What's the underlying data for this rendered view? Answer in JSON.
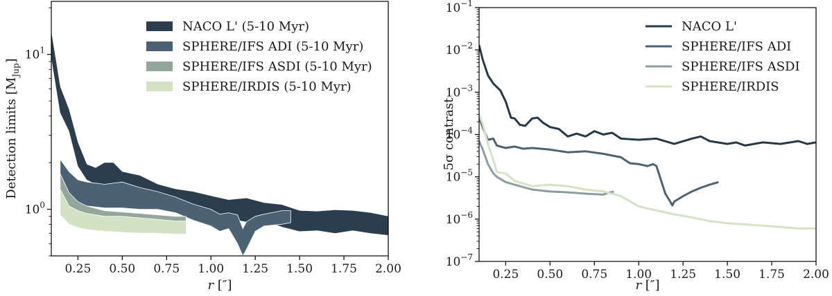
{
  "chart_data": [
    {
      "type": "area",
      "xlabel": "r [″]",
      "ylabel": "Detection limits [M",
      "ylabel_sub": "Jup",
      "ylabel_close": "]",
      "xlim": [
        0.1,
        2.0
      ],
      "ylim": [
        0.5,
        22
      ],
      "yscale": "log",
      "xticks": [
        0.25,
        0.5,
        0.75,
        1.0,
        1.25,
        1.5,
        1.75,
        2.0
      ],
      "xtick_labels": [
        "0.25",
        "0.50",
        "0.75",
        "1.00",
        "1.25",
        "1.50",
        "1.75",
        "2.00"
      ],
      "yticks": [
        {
          "value": 10,
          "base": "10",
          "exp": "1"
        },
        {
          "value": 1,
          "base": "10",
          "exp": "0"
        }
      ],
      "legend": [
        "NACO L' (5-10 Myr)",
        "SPHERE/IFS ADI (5-10 Myr)",
        "SPHERE/IFS ASDI (5-10 Myr)",
        "SPHERE/IRDIS (5-10 Myr)"
      ],
      "series": [
        {
          "name": "NACO L' (5-10 Myr)",
          "color": "#2b3e4d",
          "x": [
            0.1,
            0.15,
            0.2,
            0.25,
            0.3,
            0.35,
            0.4,
            0.45,
            0.5,
            0.6,
            0.7,
            0.8,
            0.9,
            1.0,
            1.1,
            1.2,
            1.3,
            1.4,
            1.5,
            1.6,
            1.7,
            1.8,
            1.9,
            2.0
          ],
          "upper": [
            14.0,
            6.2,
            4.4,
            2.7,
            1.95,
            1.85,
            2.0,
            2.0,
            1.75,
            1.65,
            1.45,
            1.35,
            1.3,
            1.22,
            1.15,
            1.18,
            1.1,
            1.07,
            0.98,
            0.97,
            0.99,
            0.98,
            0.95,
            0.9
          ],
          "lower": [
            9.5,
            4.2,
            3.2,
            1.9,
            1.55,
            1.45,
            1.45,
            1.4,
            1.35,
            1.25,
            1.15,
            1.1,
            1.0,
            0.95,
            0.87,
            0.83,
            0.85,
            0.77,
            0.72,
            0.73,
            0.7,
            0.73,
            0.7,
            0.68
          ]
        },
        {
          "name": "SPHERE/IFS ADI (5-10 Myr)",
          "color": "#4a6274",
          "x": [
            0.15,
            0.2,
            0.25,
            0.3,
            0.4,
            0.5,
            0.6,
            0.7,
            0.8,
            0.9,
            1.0,
            1.05,
            1.1,
            1.15,
            1.18,
            1.2,
            1.25,
            1.3,
            1.4,
            1.45
          ],
          "upper": [
            2.1,
            1.75,
            1.55,
            1.5,
            1.45,
            1.5,
            1.38,
            1.3,
            1.2,
            1.08,
            1.0,
            0.93,
            0.95,
            0.92,
            0.75,
            0.83,
            0.9,
            0.93,
            0.98,
            0.98
          ],
          "lower": [
            1.3,
            1.15,
            1.05,
            1.05,
            1.02,
            1.02,
            1.0,
            1.0,
            0.95,
            0.85,
            0.78,
            0.72,
            0.75,
            0.6,
            0.5,
            0.55,
            0.72,
            0.78,
            0.8,
            0.82
          ]
        },
        {
          "name": "SPHERE/IFS ASDI (5-10 Myr)",
          "color": "#93a69c",
          "x": [
            0.15,
            0.2,
            0.25,
            0.3,
            0.4,
            0.5,
            0.6,
            0.7,
            0.8,
            0.86
          ],
          "upper": [
            1.7,
            1.28,
            1.12,
            1.05,
            0.98,
            0.96,
            0.94,
            0.92,
            0.9,
            0.9
          ],
          "lower": [
            0.95,
            0.8,
            0.76,
            0.74,
            0.72,
            0.71,
            0.7,
            0.7,
            0.69,
            0.69
          ]
        },
        {
          "name": "SPHERE/IRDIS (5-10 Myr)",
          "color": "#d4e2c4",
          "x": [
            0.15,
            0.2,
            0.25,
            0.3,
            0.4,
            0.5,
            0.6,
            0.7,
            0.8,
            0.86
          ],
          "upper": [
            1.35,
            1.05,
            0.98,
            0.94,
            0.9,
            0.9,
            0.88,
            0.86,
            0.84,
            0.84
          ],
          "lower": [
            0.92,
            0.8,
            0.76,
            0.74,
            0.72,
            0.71,
            0.7,
            0.7,
            0.69,
            0.69
          ]
        }
      ]
    },
    {
      "type": "line",
      "xlabel": "r [″]",
      "ylabel": "5σ contrast",
      "xlim": [
        0.1,
        2.0
      ],
      "ylim": [
        1e-07,
        0.1
      ],
      "yscale": "log",
      "xticks": [
        0.25,
        0.5,
        0.75,
        1.0,
        1.25,
        1.5,
        1.75,
        2.0
      ],
      "xtick_labels": [
        "0.25",
        "0.50",
        "0.75",
        "1.00",
        "1.25",
        "1.50",
        "1.75",
        "2.00"
      ],
      "yticks": [
        {
          "value": 0.1,
          "base": "10",
          "exp": "−1"
        },
        {
          "value": 0.01,
          "base": "10",
          "exp": "−2"
        },
        {
          "value": 0.001,
          "base": "10",
          "exp": "−3"
        },
        {
          "value": 0.0001,
          "base": "10",
          "exp": "−4"
        },
        {
          "value": 1e-05,
          "base": "10",
          "exp": "−5"
        },
        {
          "value": 1e-06,
          "base": "10",
          "exp": "−6"
        },
        {
          "value": 1e-07,
          "base": "10",
          "exp": "−7"
        }
      ],
      "legend": [
        "NACO L'",
        "SPHERE/IFS ADI",
        "SPHERE/IFS ASDI",
        "SPHERE/IRDIS"
      ],
      "series": [
        {
          "name": "NACO L'",
          "color": "#24394a",
          "x": [
            0.1,
            0.12,
            0.15,
            0.18,
            0.22,
            0.25,
            0.28,
            0.3,
            0.33,
            0.36,
            0.4,
            0.43,
            0.46,
            0.5,
            0.55,
            0.6,
            0.65,
            0.7,
            0.75,
            0.8,
            0.85,
            0.9,
            1.0,
            1.1,
            1.2,
            1.3,
            1.35,
            1.4,
            1.5,
            1.55,
            1.6,
            1.7,
            1.8,
            1.9,
            1.95,
            2.0
          ],
          "y": [
            0.013,
            0.006,
            0.0025,
            0.0016,
            0.0011,
            0.0006,
            0.00025,
            0.00024,
            0.00017,
            0.00016,
            0.00024,
            0.00025,
            0.00019,
            0.00015,
            0.000135,
            9e-05,
            0.000105,
            9e-05,
            0.00012,
            0.0001,
            0.00011,
            8e-05,
            7.5e-05,
            8e-05,
            6e-05,
            8e-05,
            9e-05,
            7e-05,
            6e-05,
            6.5e-05,
            5.5e-05,
            6.5e-05,
            6e-05,
            7e-05,
            6e-05,
            6.5e-05
          ]
        },
        {
          "name": "SPHERE/IFS ADI",
          "color": "#4a6274",
          "x": [
            0.1,
            0.12,
            0.15,
            0.18,
            0.2,
            0.25,
            0.3,
            0.35,
            0.4,
            0.5,
            0.6,
            0.7,
            0.8,
            0.9,
            0.95,
            1.0,
            1.05,
            1.08,
            1.1,
            1.15,
            1.18,
            1.19,
            1.2,
            1.25,
            1.3,
            1.35,
            1.4,
            1.45
          ],
          "y": [
            0.00026,
            0.00015,
            7.5e-05,
            8e-05,
            5.5e-05,
            4.8e-05,
            5.2e-05,
            4.6e-05,
            4.8e-05,
            4.4e-05,
            3.8e-05,
            4e-05,
            3.5e-05,
            2.9e-05,
            2.1e-05,
            2e-05,
            1.8e-05,
            2e-05,
            1.8e-05,
            4e-06,
            2.5e-06,
            2.1e-06,
            2.6e-06,
            3.5e-06,
            4.5e-06,
            5.5e-06,
            6.5e-06,
            7.5e-06
          ]
        },
        {
          "name": "SPHERE/IFS ASDI",
          "color": "#8a9ea0",
          "x": [
            0.1,
            0.12,
            0.15,
            0.18,
            0.2,
            0.25,
            0.3,
            0.4,
            0.5,
            0.6,
            0.7,
            0.8,
            0.83,
            0.86
          ],
          "y": [
            7e-05,
            4.5e-05,
            2e-05,
            1.2e-05,
            1e-05,
            7.5e-06,
            6.5e-06,
            5e-06,
            4.5e-06,
            4.3e-06,
            4e-06,
            3.8e-06,
            4.2e-06,
            4.5e-06
          ]
        },
        {
          "name": "SPHERE/IRDIS",
          "color": "#d4e2c4",
          "x": [
            0.1,
            0.12,
            0.15,
            0.18,
            0.2,
            0.25,
            0.3,
            0.4,
            0.5,
            0.6,
            0.7,
            0.8,
            0.9,
            1.0,
            1.1,
            1.2,
            1.3,
            1.4,
            1.5,
            1.6,
            1.7,
            1.8,
            1.9,
            2.0
          ],
          "y": [
            0.0003,
            0.00018,
            6e-05,
            2.5e-05,
            1.3e-05,
            1.2e-05,
            8e-06,
            6e-06,
            6.5e-06,
            6e-06,
            5e-06,
            4.5e-06,
            3.5e-06,
            2e-06,
            1.6e-06,
            1.3e-06,
            1.1e-06,
            9e-07,
            8e-07,
            7.5e-07,
            7e-07,
            6.5e-07,
            6e-07,
            6e-07
          ]
        }
      ]
    }
  ]
}
